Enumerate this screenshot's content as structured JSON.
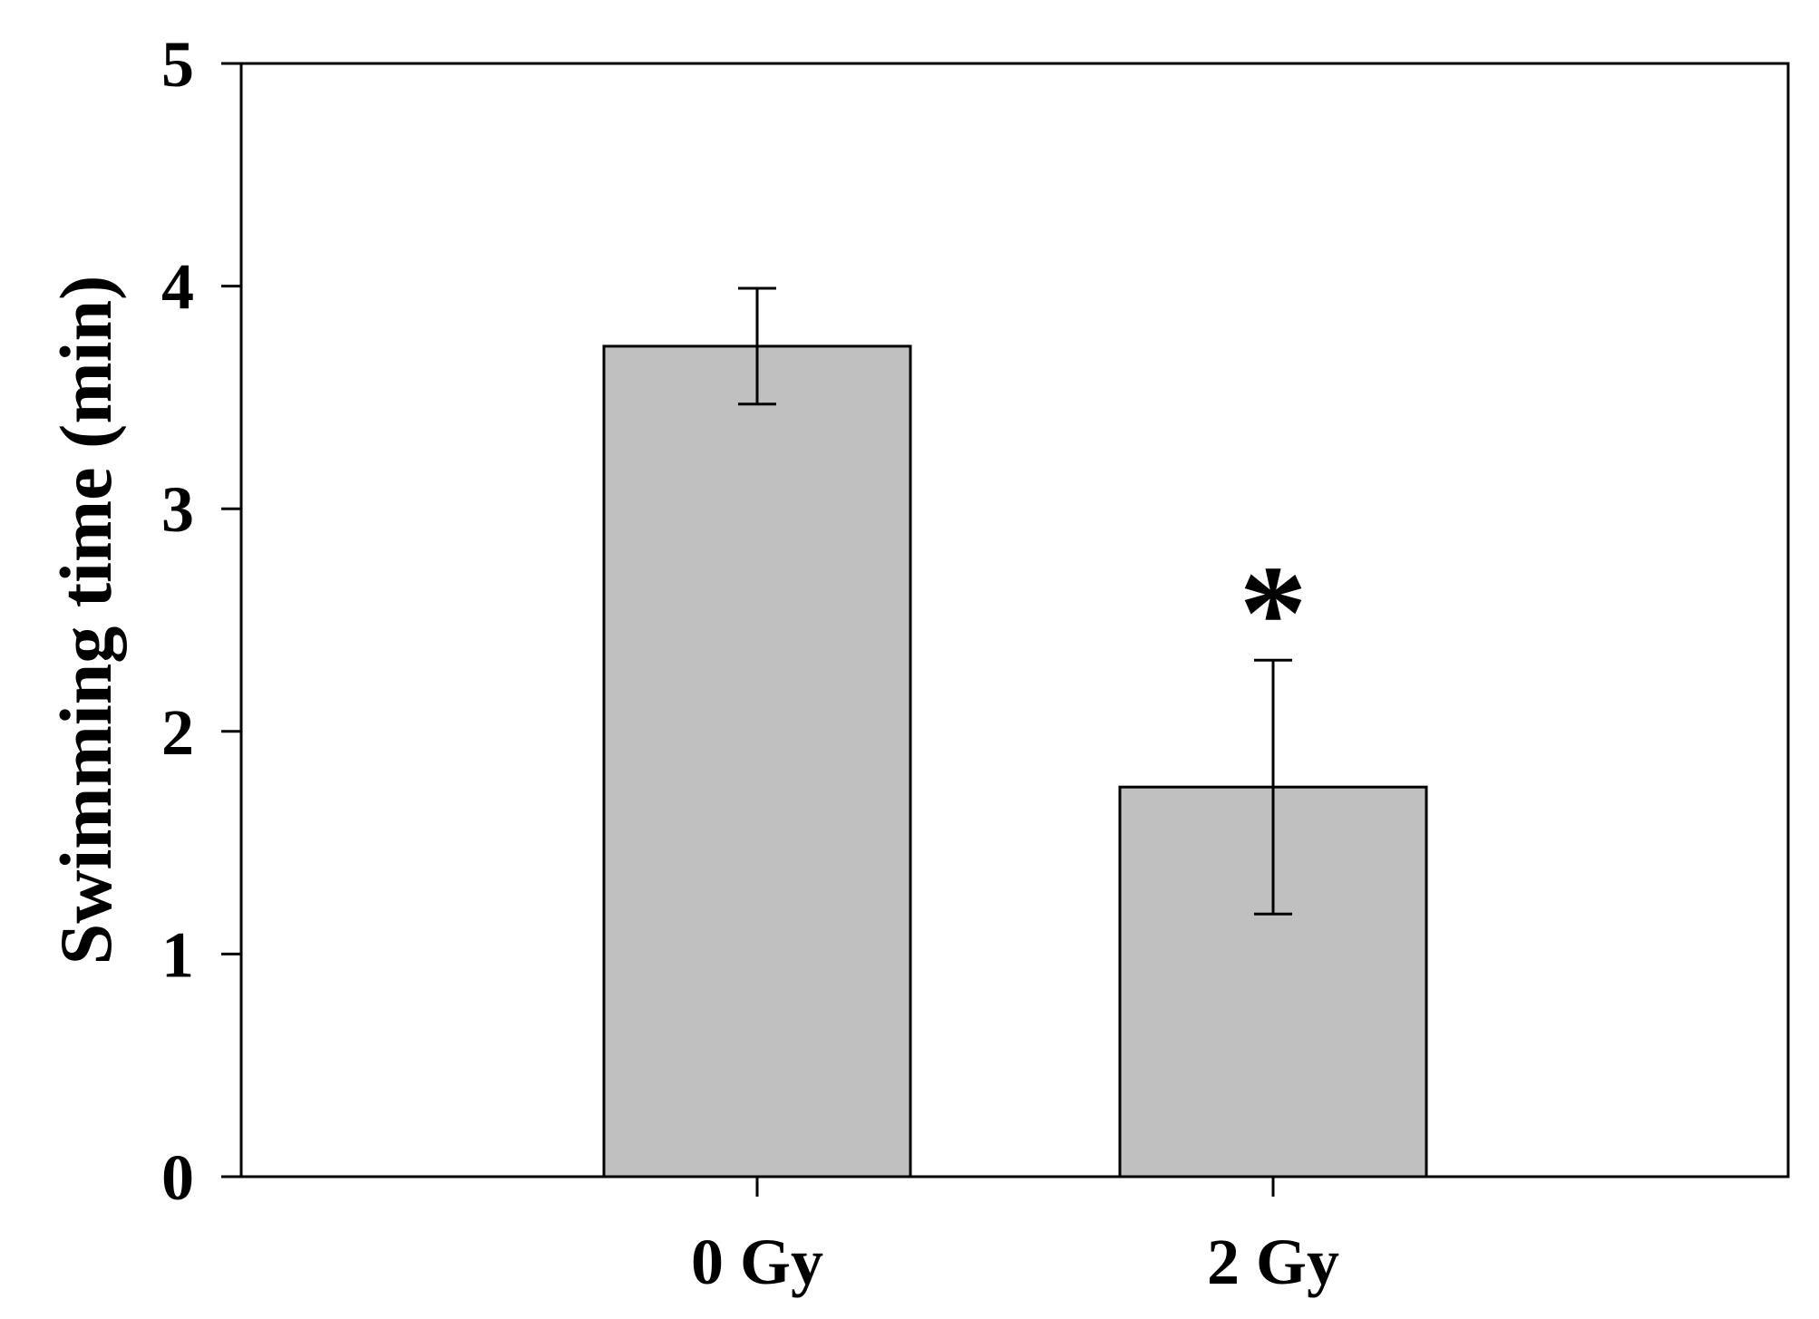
{
  "chart_data": {
    "type": "bar",
    "categories": [
      "0 Gy",
      "2 Gy"
    ],
    "values": [
      3.73,
      1.75
    ],
    "error": [
      0.26,
      0.57
    ],
    "annotations": [
      {
        "category": "2 Gy",
        "text": "*"
      }
    ],
    "ylabel": "Swimming time (min)",
    "xlabel": "",
    "ylim": [
      0,
      5
    ],
    "yticks": [
      0,
      1,
      2,
      3,
      4,
      5
    ],
    "grid": false,
    "legend": false,
    "bar_color": "#c0c0c0",
    "edge_color": "#000000"
  }
}
